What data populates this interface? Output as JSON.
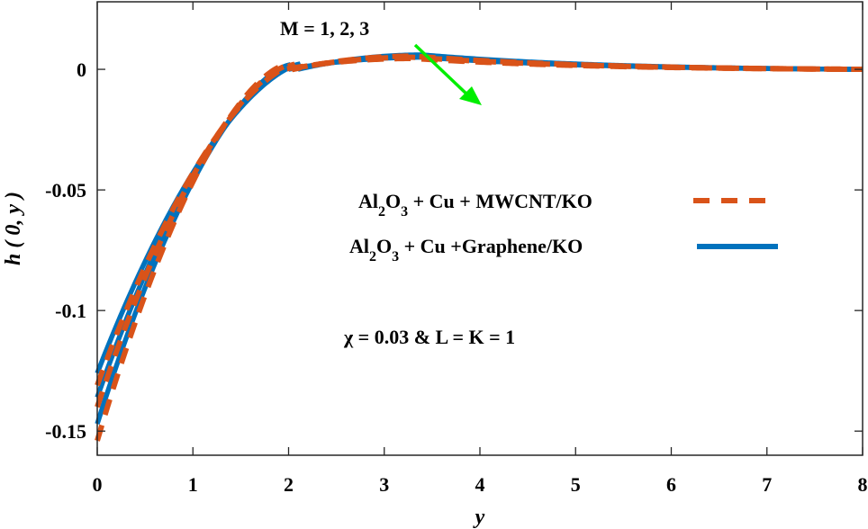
{
  "chart_data": {
    "type": "line",
    "title": "",
    "xlabel": "y",
    "ylabel": "h ( 0, y )",
    "xlim": [
      0,
      8
    ],
    "ylim": [
      -0.16,
      0.028
    ],
    "xticks": [
      0,
      1,
      2,
      3,
      4,
      5,
      6,
      7,
      8
    ],
    "xtick_labels": [
      "0",
      "1",
      "2",
      "3",
      "4",
      "5",
      "6",
      "7",
      "8"
    ],
    "yticks": [
      0,
      -0.05,
      -0.1,
      -0.15
    ],
    "ytick_labels": [
      "0",
      "-0.05",
      "-0.1",
      "-0.15"
    ],
    "grid": false,
    "legend_position": "center-right",
    "annotations": [
      {
        "text": "M = 1, 2, 3",
        "arrow": true,
        "arrow_color": "#00ee00",
        "arrow_from": [
          3.5,
          0.0045
        ],
        "arrow_to": [
          4.05,
          -0.014
        ]
      },
      {
        "text": "χ = 0.03 & L = K = 1"
      }
    ],
    "series": [
      {
        "name": "Al2O3 + Cu + MWCNT/KO",
        "style": "dashed",
        "color": "#d95319",
        "M": [
          1,
          2,
          3
        ],
        "h_at_y0": [
          -0.131,
          -0.14,
          -0.154
        ],
        "peak_value": [
          0.0055,
          0.005,
          0.0045
        ],
        "peak_y": [
          3.3,
          3.3,
          3.3
        ],
        "zero_crossing_y": [
          2.05,
          2.0,
          1.95
        ],
        "h_at_y8": [
          0,
          0,
          0
        ]
      },
      {
        "name": "Al2O3 + Cu +Graphene/KO",
        "style": "solid",
        "color": "#0072bd",
        "M": [
          1,
          2,
          3
        ],
        "h_at_y0": [
          -0.126,
          -0.136,
          -0.147
        ],
        "peak_value": [
          0.006,
          0.0055,
          0.005
        ],
        "peak_y": [
          3.4,
          3.4,
          3.4
        ],
        "zero_crossing_y": [
          2.1,
          2.05,
          2.0
        ],
        "h_at_y8": [
          0,
          0,
          0
        ]
      }
    ]
  },
  "legend": {
    "items": [
      {
        "prefix": "Al",
        "sub1": "2",
        "mid": "O",
        "sub2": "3",
        "suffix": " + Cu + MWCNT/KO"
      },
      {
        "prefix": "Al",
        "sub1": "2",
        "mid": "O",
        "sub2": "3",
        "suffix": " + Cu +Graphene/KO"
      }
    ]
  },
  "annotations": {
    "m_label": "M = 1, 2, 3",
    "params_label": "χ = 0.03 & L = K = 1"
  },
  "axes": {
    "xlabel": "y",
    "ylabel": "h ( 0, y )"
  }
}
